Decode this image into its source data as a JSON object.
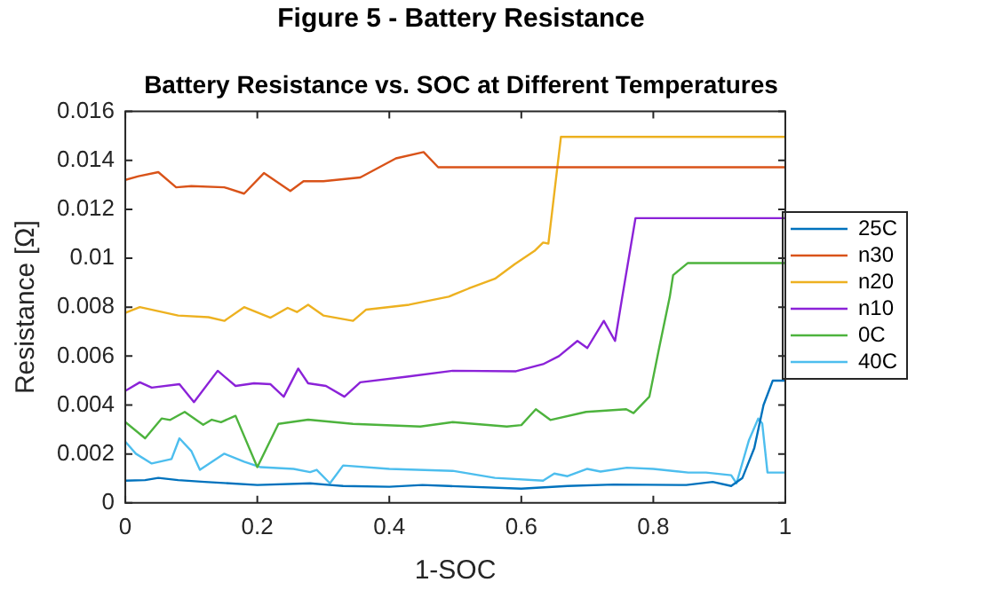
{
  "chart_data": {
    "type": "line",
    "title": "Figure 5 - Battery Resistance",
    "subtitle": "Battery Resistance vs. SOC at Different Temperatures",
    "xlabel": "1-SOC",
    "ylabel": "Resistance [Ω]",
    "xlim": [
      0,
      1
    ],
    "xticks": [
      0,
      0.2,
      0.4,
      0.6,
      0.8,
      1
    ],
    "ylim": [
      0,
      0.016
    ],
    "yticks": [
      0,
      0.002,
      0.004,
      0.006,
      0.008,
      0.01,
      0.012,
      0.014,
      0.016
    ],
    "grid": false,
    "legend": "right",
    "marker": "none",
    "line_style": "solid",
    "series": [
      {
        "name": "25C",
        "color": "#0072bd",
        "x": [
          0,
          0.03,
          0.05,
          0.08,
          0.12,
          0.2,
          0.28,
          0.31,
          0.33,
          0.4,
          0.45,
          0.49,
          0.6,
          0.67,
          0.74,
          0.85,
          0.89,
          0.918,
          0.935,
          0.953,
          0.967,
          0.981,
          1
        ],
        "values": [
          0.00091,
          0.00093,
          0.00102,
          0.00093,
          0.00086,
          0.00073,
          0.0008,
          0.00073,
          0.00069,
          0.00066,
          0.00073,
          0.00069,
          0.00058,
          0.00069,
          0.00075,
          0.00073,
          0.00086,
          0.00069,
          0.00102,
          0.00224,
          0.004,
          0.005,
          0.005
        ]
      },
      {
        "name": "n30",
        "color": "#d95319",
        "x": [
          0,
          0.02,
          0.05,
          0.077,
          0.1,
          0.15,
          0.18,
          0.21,
          0.25,
          0.27,
          0.3,
          0.356,
          0.41,
          0.452,
          0.474,
          1
        ],
        "values": [
          0.0132,
          0.01335,
          0.01352,
          0.0129,
          0.01295,
          0.0129,
          0.01264,
          0.01348,
          0.01275,
          0.01315,
          0.01315,
          0.0133,
          0.01408,
          0.01434,
          0.01372,
          0.01372
        ]
      },
      {
        "name": "n20",
        "color": "#edb120",
        "x": [
          0,
          0.022,
          0.08,
          0.126,
          0.15,
          0.18,
          0.22,
          0.246,
          0.26,
          0.277,
          0.3,
          0.345,
          0.365,
          0.43,
          0.49,
          0.52,
          0.56,
          0.59,
          0.62,
          0.633,
          0.641,
          0.66,
          1
        ],
        "values": [
          0.00777,
          0.008,
          0.00766,
          0.00759,
          0.00744,
          0.008,
          0.00757,
          0.00797,
          0.0078,
          0.0081,
          0.00766,
          0.00744,
          0.0079,
          0.0081,
          0.00843,
          0.00876,
          0.00916,
          0.00976,
          0.0103,
          0.01064,
          0.0106,
          0.01496,
          0.01496
        ]
      },
      {
        "name": "n10",
        "color": "#8b22d8",
        "x": [
          0,
          0.022,
          0.04,
          0.082,
          0.104,
          0.14,
          0.167,
          0.195,
          0.22,
          0.24,
          0.262,
          0.277,
          0.304,
          0.332,
          0.356,
          0.427,
          0.496,
          0.592,
          0.633,
          0.657,
          0.685,
          0.7,
          0.725,
          0.742,
          0.753,
          0.773,
          1
        ],
        "values": [
          0.00458,
          0.00493,
          0.00471,
          0.00485,
          0.00412,
          0.0054,
          0.00478,
          0.00489,
          0.00485,
          0.00434,
          0.00549,
          0.00489,
          0.00478,
          0.00434,
          0.00493,
          0.00516,
          0.0054,
          0.00538,
          0.00567,
          0.006,
          0.00662,
          0.00633,
          0.00744,
          0.00662,
          0.00843,
          0.01164,
          0.01164
        ]
      },
      {
        "name": "0C",
        "color": "#4db33d",
        "x": [
          0,
          0.03,
          0.055,
          0.068,
          0.09,
          0.118,
          0.131,
          0.145,
          0.167,
          0.2,
          0.232,
          0.277,
          0.345,
          0.447,
          0.496,
          0.578,
          0.6,
          0.622,
          0.644,
          0.698,
          0.759,
          0.77,
          0.794,
          0.808,
          0.825,
          0.83,
          0.852,
          1
        ],
        "values": [
          0.0033,
          0.00264,
          0.00345,
          0.00339,
          0.00372,
          0.00319,
          0.0034,
          0.0033,
          0.00356,
          0.00146,
          0.00323,
          0.0034,
          0.00323,
          0.00312,
          0.0033,
          0.00312,
          0.00318,
          0.00383,
          0.00339,
          0.00372,
          0.00383,
          0.00367,
          0.00434,
          0.00622,
          0.00843,
          0.00931,
          0.0098,
          0.0098
        ]
      },
      {
        "name": "40C",
        "color": "#4dbeee",
        "x": [
          0,
          0.016,
          0.04,
          0.07,
          0.082,
          0.1,
          0.113,
          0.15,
          0.18,
          0.205,
          0.255,
          0.28,
          0.29,
          0.31,
          0.33,
          0.4,
          0.496,
          0.56,
          0.633,
          0.65,
          0.67,
          0.7,
          0.72,
          0.76,
          0.8,
          0.853,
          0.88,
          0.918,
          0.926,
          0.945,
          0.959,
          0.965,
          0.973,
          1
        ],
        "values": [
          0.0025,
          0.00201,
          0.00161,
          0.00179,
          0.00264,
          0.00212,
          0.00135,
          0.00201,
          0.00168,
          0.00146,
          0.00139,
          0.00126,
          0.00135,
          0.0008,
          0.00153,
          0.00139,
          0.00131,
          0.00102,
          0.00091,
          0.0012,
          0.00109,
          0.00139,
          0.00128,
          0.00144,
          0.00139,
          0.00124,
          0.00124,
          0.00113,
          0.0008,
          0.00257,
          0.00345,
          0.00325,
          0.00124,
          0.00124
        ]
      }
    ]
  }
}
